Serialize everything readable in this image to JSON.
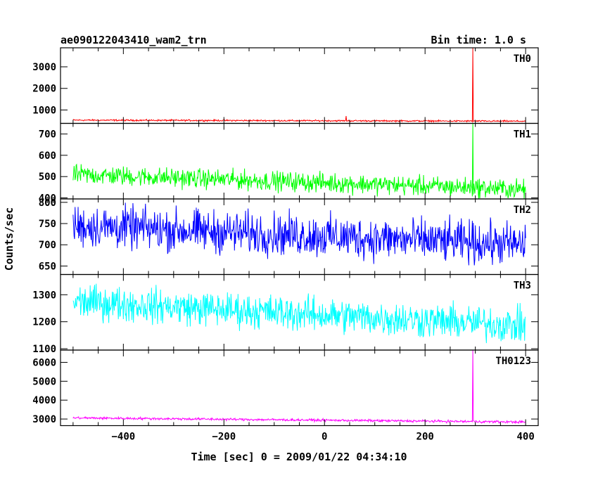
{
  "header": {
    "title": "ae090122043410_wam2_trn",
    "bin_time": "Bin time: 1.0 s"
  },
  "chart_data": {
    "type": "line",
    "xlabel": "Time [sec] 0 = 2009/01/22 04:34:10",
    "ylabel": "Counts/sec",
    "xlim": [
      -525,
      425
    ],
    "x_ticks": [
      -400,
      -200,
      0,
      200,
      400
    ],
    "x_tick_labels": [
      "−400",
      "−200",
      "0",
      "200",
      "400"
    ],
    "x_start": -500,
    "x_end": 400,
    "grid": false,
    "panels": [
      {
        "name": "TH0",
        "color": "#ff0000",
        "ylim": [
          380,
          3880
        ],
        "y_ticks": [
          1000,
          2000,
          3000
        ],
        "base_start": 530,
        "base_end": 480,
        "noise": 25,
        "events": [
          {
            "x": 43,
            "y": 720
          },
          {
            "x": 295,
            "y": 3880
          }
        ]
      },
      {
        "name": "TH1",
        "color": "#00ff00",
        "ylim": [
          395,
          750
        ],
        "y_ticks": [
          400,
          500,
          600,
          700
        ],
        "base_start": 510,
        "base_end": 440,
        "noise": 32,
        "events": [
          {
            "x": 295,
            "y": 750
          }
        ]
      },
      {
        "name": "TH2",
        "color": "#0000ff",
        "ylim": [
          630,
          808
        ],
        "y_ticks": [
          650,
          700,
          750,
          800
        ],
        "base_start": 745,
        "base_end": 700,
        "noise": 35,
        "events": []
      },
      {
        "name": "TH3",
        "color": "#00ffff",
        "ylim": [
          1095,
          1375
        ],
        "y_ticks": [
          1100,
          1200,
          1300
        ],
        "base_start": 1275,
        "base_end": 1185,
        "noise": 45,
        "events": []
      },
      {
        "name": "TH0123",
        "color": "#ff00ff",
        "ylim": [
          2650,
          6650
        ],
        "y_ticks": [
          3000,
          4000,
          5000,
          6000
        ],
        "base_start": 3060,
        "base_end": 2840,
        "noise": 45,
        "events": [
          {
            "x": 295,
            "y": 6650
          }
        ]
      }
    ]
  }
}
